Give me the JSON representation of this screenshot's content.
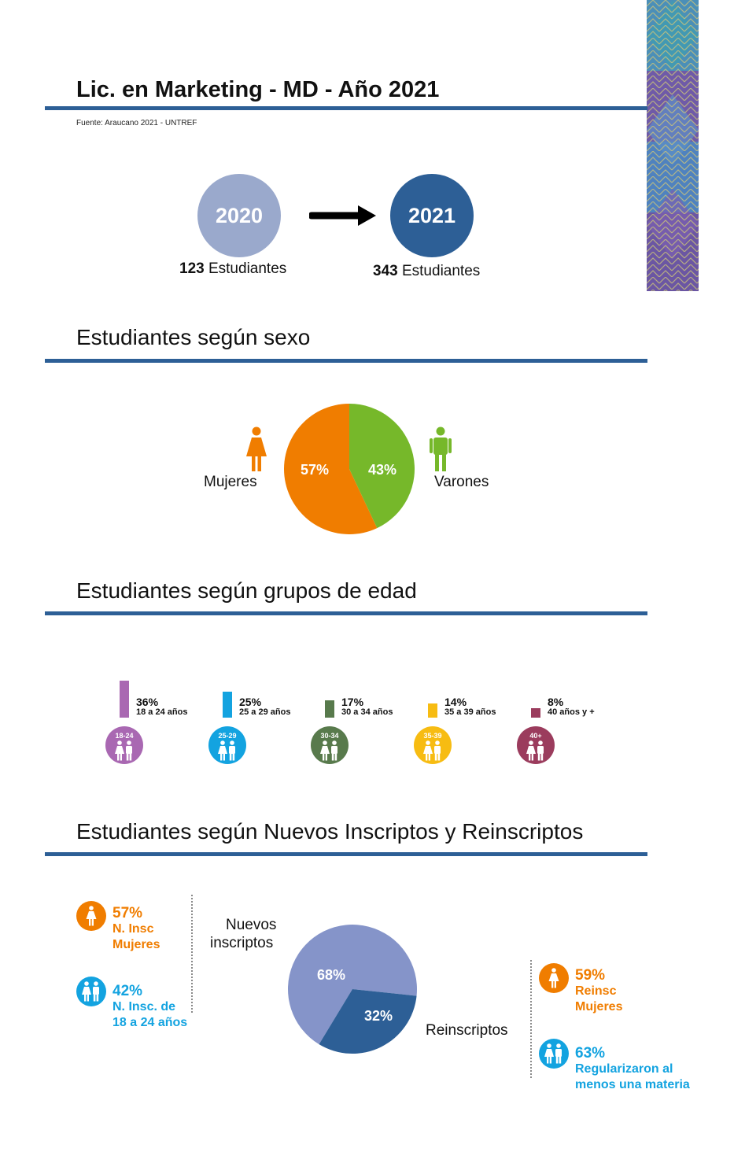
{
  "header": {
    "title": "Lic. en Marketing - MD - Año 2021",
    "source": "Fuente: Araucano 2021 - UNTREF"
  },
  "comparison": {
    "from": {
      "year": "2020",
      "count": "123",
      "unit": "Estudiantes",
      "color": "#9aa9cc"
    },
    "to": {
      "year": "2021",
      "count": "343",
      "unit": "Estudiantes",
      "color": "#2d5f96"
    }
  },
  "sex_section": {
    "title": "Estudiantes según sexo",
    "female_label": "Mujeres",
    "male_label": "Varones",
    "female_color": "#f07d00",
    "male_color": "#76b82a"
  },
  "age_section": {
    "title": "Estudiantes según grupos de edad",
    "groups": [
      {
        "pct": "36%",
        "range": "18 a 24 años",
        "tag": "18-24",
        "color": "#a968b2",
        "value": 36
      },
      {
        "pct": "25%",
        "range": "25 a 29 años",
        "tag": "25-29",
        "color": "#13a3e0",
        "value": 25
      },
      {
        "pct": "17%",
        "range": "30 a 34 años",
        "tag": "30-34",
        "color": "#587a4c",
        "value": 17
      },
      {
        "pct": "14%",
        "range": "35 a 39 años",
        "tag": "35-39",
        "color": "#f7bc12",
        "value": 14
      },
      {
        "pct": "8%",
        "range": "40 años y +",
        "tag": "40+",
        "color": "#9b3c5d",
        "value": 8
      }
    ]
  },
  "enrollment_section": {
    "title": "Estudiantes según Nuevos Inscriptos y Reinscriptos",
    "new_label_1": "Nuevos",
    "new_label_2": "inscriptos",
    "re_label": "Reinscriptos",
    "left_stats": [
      {
        "pct": "57%",
        "line1": "N. Insc",
        "line2": "Mujeres",
        "color": "#f07d00",
        "icon": "woman-icon"
      },
      {
        "pct": "42%",
        "line1": "N. Insc. de",
        "line2": "18 a 24 años",
        "color": "#13a3e0",
        "icon": "couple-icon"
      }
    ],
    "right_stats": [
      {
        "pct": "59%",
        "line1": "Reinsc",
        "line2": "Mujeres",
        "color": "#f07d00",
        "icon": "woman-icon"
      },
      {
        "pct": "63%",
        "line1": "Regularizaron al",
        "line2": "menos una materia",
        "color": "#13a3e0",
        "icon": "couple-icon"
      }
    ]
  },
  "chart_data": [
    {
      "type": "pie",
      "title": "",
      "categories": [
        "Mujeres",
        "Varones"
      ],
      "values": [
        57,
        43
      ],
      "labels": [
        "57%",
        "43%"
      ],
      "colors": [
        "#f07d00",
        "#76b82a"
      ]
    },
    {
      "type": "pie",
      "title": "",
      "categories": [
        "Nuevos inscriptos",
        "Reinscriptos"
      ],
      "values": [
        68,
        32
      ],
      "labels": [
        "68%",
        "32%"
      ],
      "colors": [
        "#8594c9",
        "#2d5f96"
      ]
    }
  ]
}
